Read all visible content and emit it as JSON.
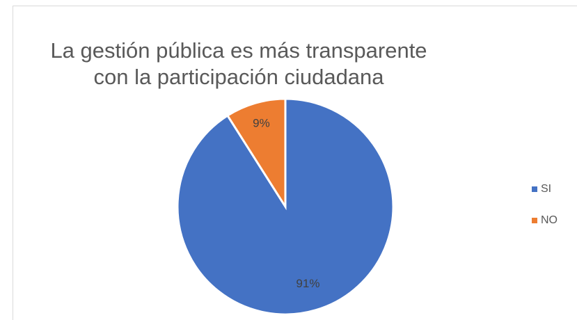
{
  "chart_data": {
    "type": "pie",
    "title": [
      "La gestión pública es más transparente",
      "con la participación ciudadana"
    ],
    "categories": [
      "SI",
      "NO"
    ],
    "values": [
      91,
      9
    ],
    "value_labels": [
      "91%",
      "9%"
    ],
    "colors": [
      "#4472c4",
      "#ed7d31"
    ],
    "legend": "right"
  }
}
